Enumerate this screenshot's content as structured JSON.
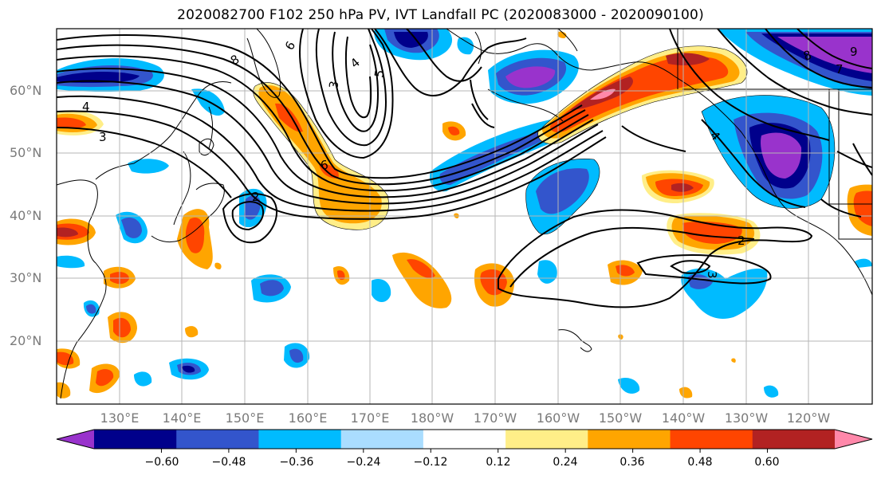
{
  "title": "2020082700 F102 250 hPa PV, IVT Landfall PC (2020083000 - 2020090100)",
  "map": {
    "lat_labels": [
      "60°N",
      "50°N",
      "40°N",
      "30°N",
      "20°N"
    ],
    "lon_labels": [
      "130°E",
      "140°E",
      "150°E",
      "160°E",
      "170°E",
      "180°W",
      "170°W",
      "160°W",
      "150°W",
      "140°W",
      "130°W",
      "120°W"
    ],
    "contour_labels": [
      "8",
      "6",
      "4",
      "3",
      "5",
      "4",
      "3",
      "2",
      "2",
      "3",
      "6",
      "4",
      "7",
      "8",
      "9"
    ]
  },
  "colorbar": {
    "tick_labels": [
      "−0.60",
      "−0.48",
      "−0.36",
      "−0.24",
      "−0.12",
      "0.12",
      "0.24",
      "0.36",
      "0.48",
      "0.60"
    ],
    "colors": [
      "#9933cc",
      "#00008b",
      "#3355cc",
      "#00bbff",
      "#aaddff",
      "#ffffff",
      "#ffee88",
      "#ffa500",
      "#ff4500",
      "#b22222",
      "#ff88aa"
    ]
  }
}
